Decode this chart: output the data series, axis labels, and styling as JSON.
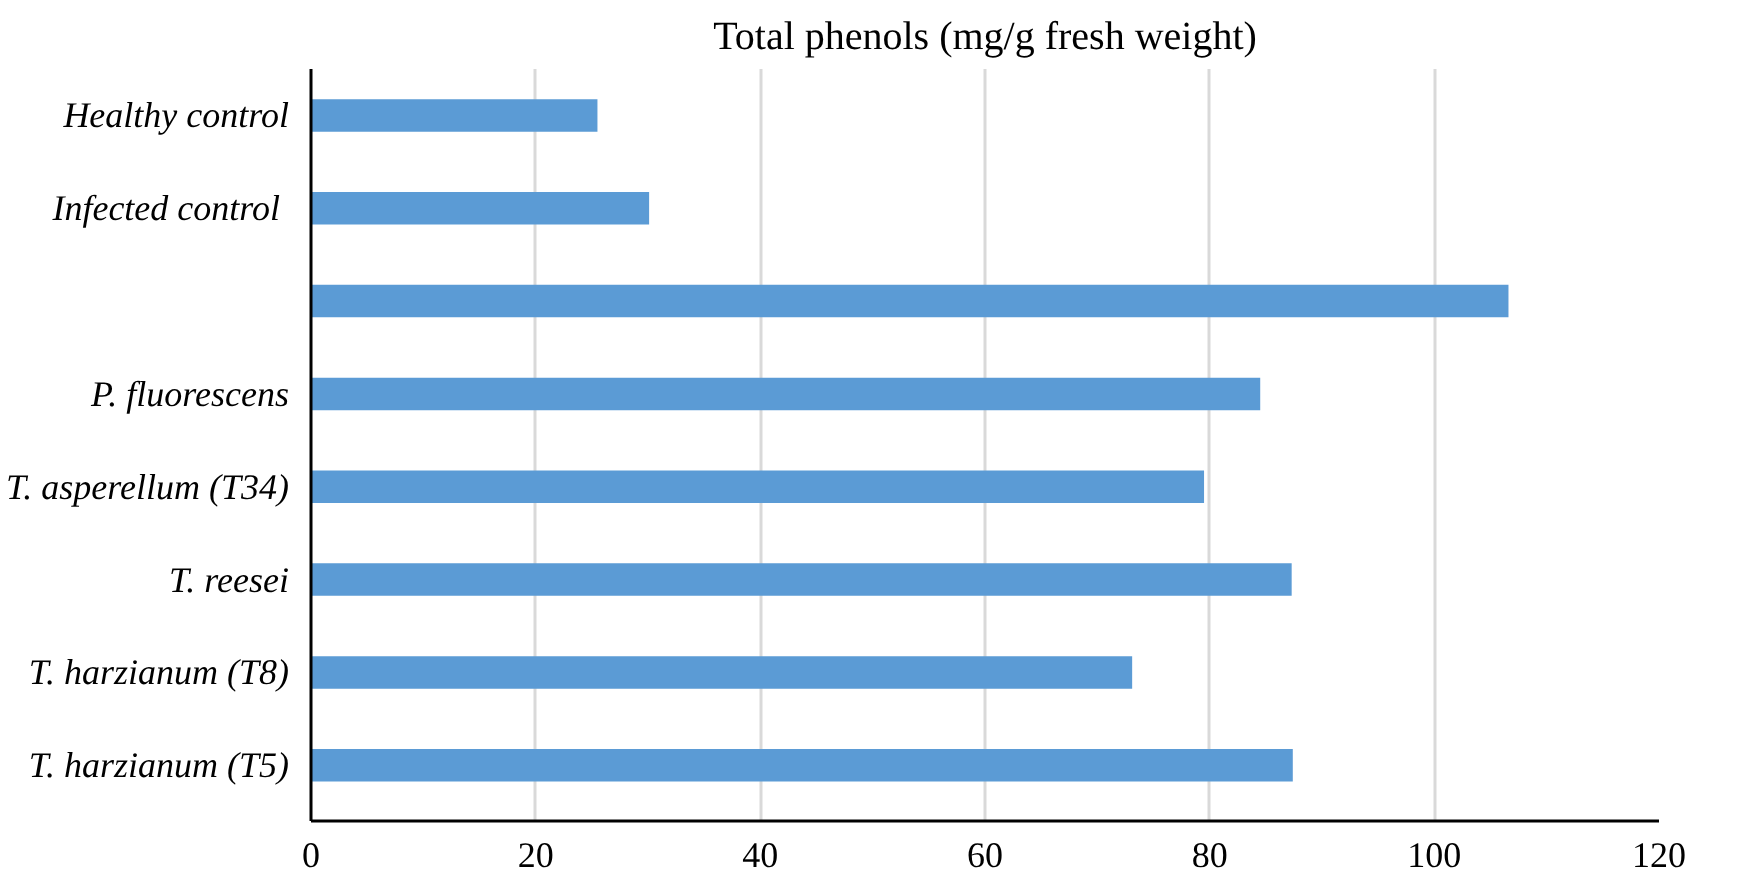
{
  "chart_data": {
    "type": "bar",
    "orientation": "horizontal",
    "title": "Total phenols (mg/g fresh weight)",
    "categories": [
      "Healthy control",
      "Infected control ",
      null,
      "P. fluorescens",
      "T. asperellum (T34)",
      "T. reesei",
      "T. harzianum (T8)",
      "T. harzianum (T5)"
    ],
    "values": [
      25.5,
      30.1,
      106.6,
      84.5,
      79.5,
      87.3,
      73.1,
      87.4
    ],
    "color": "#5b9bd5",
    "xlim": [
      0,
      120
    ],
    "xticks": [
      0,
      20,
      40,
      60,
      80,
      100,
      120
    ],
    "grid": "x"
  }
}
